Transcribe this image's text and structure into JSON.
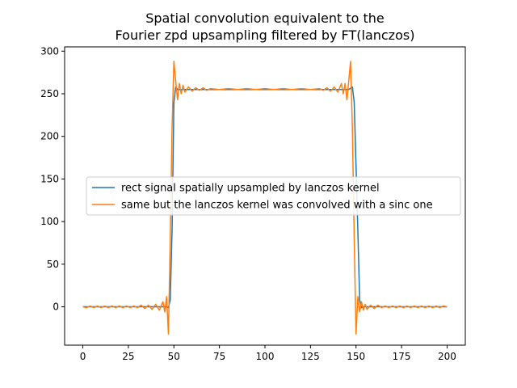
{
  "chart_data": {
    "type": "line",
    "title_lines": [
      "Spatial convolution equivalent to the",
      "Fourier zpd upsampling filtered by FT(lanczos)"
    ],
    "xlabel": "",
    "ylabel": "",
    "xlim": [
      -10,
      210
    ],
    "ylim": [
      -45,
      305
    ],
    "xticks": [
      0,
      25,
      50,
      75,
      100,
      125,
      150,
      175,
      200
    ],
    "yticks": [
      0,
      50,
      100,
      150,
      200,
      250,
      300
    ],
    "grid": false,
    "legend_placement": "center-left",
    "series": [
      {
        "name": "rect signal spatially upsampled by lanczos kernel",
        "color": "#1f77b4",
        "x": [
          0,
          5,
          10,
          15,
          20,
          25,
          30,
          35,
          40,
          44,
          46,
          47,
          48,
          49,
          50,
          51,
          52,
          54,
          56,
          60,
          70,
          80,
          90,
          100,
          110,
          120,
          130,
          140,
          144,
          146,
          148,
          149,
          150,
          151,
          152,
          153,
          154,
          156,
          160,
          170,
          180,
          190,
          200
        ],
        "values": [
          0,
          0,
          0,
          0,
          0,
          0,
          0,
          0,
          0,
          0,
          0,
          -1,
          8,
          90,
          240,
          258,
          255,
          255,
          255,
          255,
          255,
          255,
          255,
          255,
          255,
          255,
          255,
          255,
          255,
          255,
          258,
          240,
          166,
          90,
          8,
          -1,
          0,
          0,
          0,
          0,
          0,
          0,
          0
        ]
      },
      {
        "name": "same but the lanczos kernel was convolved with a sinc one",
        "color": "#ff7f0e",
        "x": [
          0,
          2,
          4,
          6,
          8,
          10,
          12,
          14,
          16,
          18,
          20,
          22,
          24,
          26,
          28,
          30,
          32,
          34,
          36,
          38,
          40,
          42,
          44,
          45,
          46,
          47,
          48,
          49,
          50,
          51,
          52,
          53,
          54,
          55,
          56,
          58,
          60,
          62,
          64,
          66,
          68,
          70,
          75,
          80,
          85,
          90,
          95,
          100,
          105,
          110,
          115,
          120,
          125,
          130,
          132,
          134,
          136,
          138,
          140,
          142,
          143,
          144,
          145,
          146,
          147,
          148,
          149,
          150,
          151,
          152,
          153,
          154,
          155,
          156,
          158,
          160,
          162,
          164,
          166,
          168,
          170,
          172,
          174,
          176,
          178,
          180,
          182,
          184,
          186,
          188,
          190,
          192,
          194,
          196,
          198,
          200
        ],
        "values": [
          0,
          -1,
          1,
          -1,
          1,
          -1,
          1,
          -1,
          1,
          -1,
          1,
          -1,
          1,
          -1,
          1,
          -1,
          2,
          -2,
          2,
          -3,
          3,
          -4,
          6,
          -6,
          12,
          -32,
          80,
          210,
          288,
          265,
          243,
          262,
          250,
          260,
          252,
          258,
          253,
          257,
          254,
          257,
          254,
          256,
          255,
          256,
          255,
          256,
          255,
          256,
          255,
          256,
          255,
          256,
          255,
          256,
          254,
          257,
          253,
          258,
          252,
          262,
          250,
          262,
          243,
          265,
          288,
          210,
          80,
          -32,
          12,
          -6,
          6,
          -4,
          3,
          -3,
          2,
          -2,
          2,
          -1,
          1,
          -1,
          1,
          -1,
          1,
          -1,
          1,
          -1,
          1,
          -1,
          1,
          -1,
          1,
          -1,
          1,
          -1,
          1,
          0
        ]
      }
    ]
  }
}
